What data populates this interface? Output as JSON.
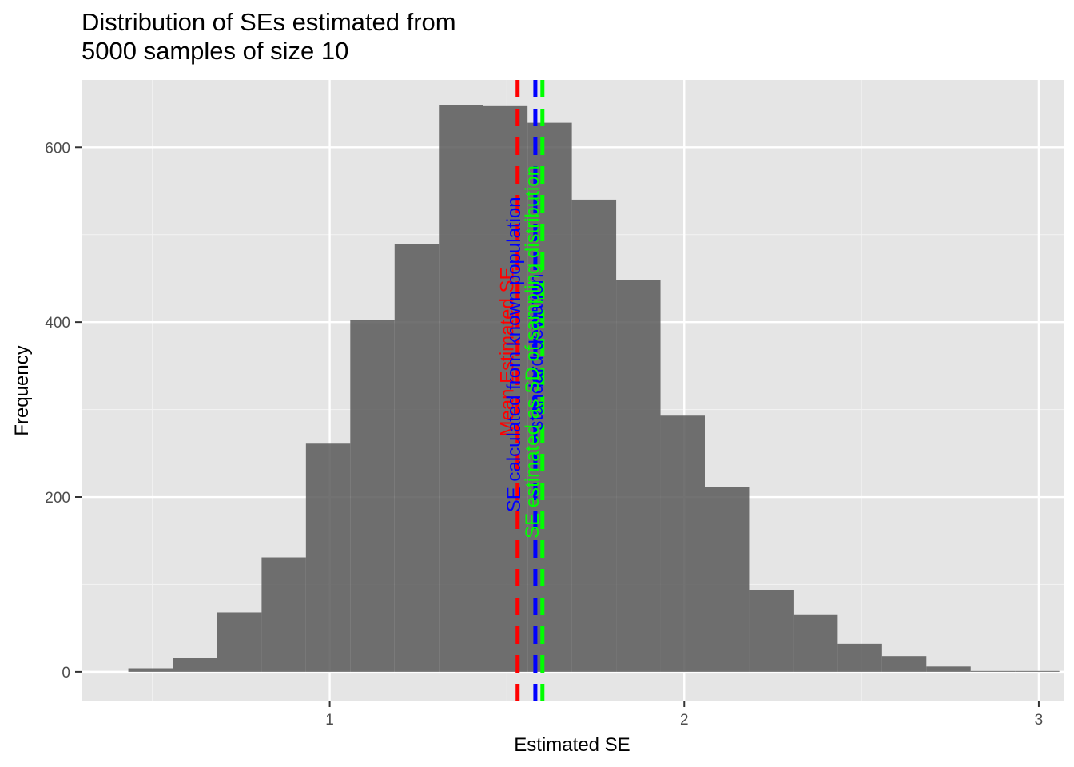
{
  "chart_data": {
    "type": "histogram",
    "title_lines": [
      "Distribution of SEs estimated from",
      "5000 samples of size 10"
    ],
    "xlabel": "Estimated SE",
    "ylabel": "Frequency",
    "xlim": [
      0.3,
      3.07
    ],
    "ylim": [
      -33,
      677
    ],
    "x_major_ticks": [
      1,
      2,
      3
    ],
    "x_minor_ticks": [
      0.5,
      1.5,
      2.5
    ],
    "y_major_ticks": [
      0,
      200,
      400,
      600
    ],
    "y_minor_ticks": [
      100,
      300,
      500
    ],
    "grid": true,
    "bar_color": "#595959",
    "bins": [
      {
        "x0": 0.432,
        "x1": 0.557,
        "count": 4
      },
      {
        "x0": 0.557,
        "x1": 0.682,
        "count": 16
      },
      {
        "x0": 0.682,
        "x1": 0.808,
        "count": 68
      },
      {
        "x0": 0.808,
        "x1": 0.933,
        "count": 131
      },
      {
        "x0": 0.933,
        "x1": 1.058,
        "count": 261
      },
      {
        "x0": 1.058,
        "x1": 1.183,
        "count": 402
      },
      {
        "x0": 1.183,
        "x1": 1.308,
        "count": 489
      },
      {
        "x0": 1.308,
        "x1": 1.433,
        "count": 648
      },
      {
        "x0": 1.433,
        "x1": 1.558,
        "count": 647
      },
      {
        "x0": 1.558,
        "x1": 1.683,
        "count": 628
      },
      {
        "x0": 1.683,
        "x1": 1.808,
        "count": 540
      },
      {
        "x0": 1.808,
        "x1": 1.933,
        "count": 448
      },
      {
        "x0": 1.933,
        "x1": 2.058,
        "count": 293
      },
      {
        "x0": 2.058,
        "x1": 2.183,
        "count": 211
      },
      {
        "x0": 2.183,
        "x1": 2.308,
        "count": 94
      },
      {
        "x0": 2.308,
        "x1": 2.433,
        "count": 65
      },
      {
        "x0": 2.433,
        "x1": 2.558,
        "count": 32
      },
      {
        "x0": 2.558,
        "x1": 2.683,
        "count": 18
      },
      {
        "x0": 2.683,
        "x1": 2.808,
        "count": 6
      },
      {
        "x0": 2.808,
        "x1": 2.933,
        "count": 1
      },
      {
        "x0": 2.933,
        "x1": 3.058,
        "count": 1
      }
    ],
    "reference_lines": [
      {
        "x": 1.53,
        "color": "#ff0000",
        "label_lines": [
          "Mean Estimated SE"
        ]
      },
      {
        "x": 1.58,
        "color": "#0000ff",
        "label_lines": [
          "SE calculated from known population",
          "standard deviation"
        ]
      },
      {
        "x": 1.6,
        "color": "#00ff00",
        "label_lines": [
          "SE estimated as SD of sampling distribution"
        ]
      }
    ]
  }
}
